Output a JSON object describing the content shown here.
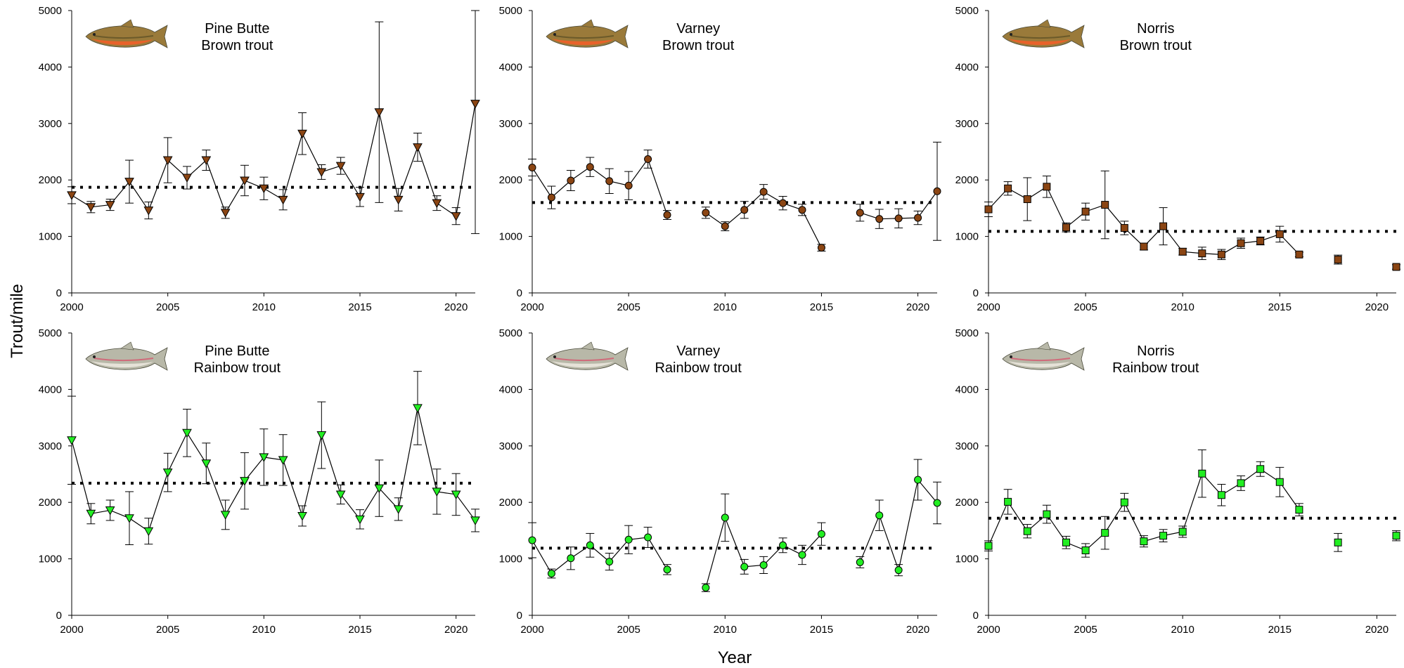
{
  "figure": {
    "ylabel": "Trout/mile",
    "xlabel": "Year"
  },
  "chart_data": [
    {
      "type": "line",
      "panel": "top-left",
      "site": "Pine Butte",
      "species": "Brown trout",
      "title_line1": "Pine Butte",
      "title_line2": "Brown trout",
      "marker": "triangle-down",
      "color": "#8B4513",
      "fish_icon": "brown-trout-icon",
      "xlim": [
        2000,
        2021
      ],
      "ylim": [
        0,
        5000
      ],
      "xticks": [
        2000,
        2005,
        2010,
        2015,
        2020
      ],
      "yticks": [
        0,
        1000,
        2000,
        3000,
        4000,
        5000
      ],
      "mean": 1870,
      "x": [
        2000,
        2001,
        2002,
        2003,
        2004,
        2005,
        2006,
        2007,
        2008,
        2009,
        2010,
        2011,
        2012,
        2013,
        2014,
        2015,
        2016,
        2017,
        2018,
        2019,
        2020,
        2021
      ],
      "y": [
        1730,
        1520,
        1560,
        1970,
        1460,
        2350,
        2040,
        2350,
        1420,
        1990,
        1850,
        1650,
        2820,
        2140,
        2250,
        1700,
        3200,
        1650,
        2580,
        1590,
        1360,
        3350
      ],
      "err": [
        150,
        100,
        100,
        380,
        150,
        400,
        200,
        180,
        100,
        270,
        200,
        180,
        370,
        130,
        150,
        170,
        1600,
        200,
        250,
        130,
        150,
        2300
      ]
    },
    {
      "type": "line",
      "panel": "top-middle",
      "site": "Varney",
      "species": "Brown trout",
      "title_line1": "Varney",
      "title_line2": "Brown trout",
      "marker": "circle",
      "color": "#8B4513",
      "fish_icon": "brown-trout-icon",
      "xlim": [
        2000,
        2021
      ],
      "ylim": [
        0,
        5000
      ],
      "xticks": [
        2000,
        2005,
        2010,
        2015,
        2020
      ],
      "yticks": [
        0,
        1000,
        2000,
        3000,
        4000,
        5000
      ],
      "mean": 1600,
      "segments": [
        {
          "x": [
            2000,
            2001,
            2002,
            2003,
            2004,
            2005,
            2006,
            2007
          ],
          "y": [
            2220,
            1690,
            1990,
            2230,
            1980,
            1900,
            2370,
            1380
          ],
          "err": [
            150,
            200,
            180,
            170,
            220,
            250,
            160,
            80
          ]
        },
        {
          "x": [
            2009,
            2010,
            2011,
            2012,
            2013,
            2014,
            2015
          ],
          "y": [
            1420,
            1180,
            1470,
            1790,
            1590,
            1470,
            800
          ],
          "err": [
            100,
            80,
            150,
            130,
            120,
            100,
            60
          ]
        },
        {
          "x": [
            2017,
            2018,
            2019,
            2020,
            2021
          ],
          "y": [
            1420,
            1310,
            1320,
            1330,
            1800
          ],
          "err": [
            150,
            170,
            170,
            120,
            870
          ]
        }
      ]
    },
    {
      "type": "line",
      "panel": "top-right",
      "site": "Norris",
      "species": "Brown trout",
      "title_line1": "Norris",
      "title_line2": "Brown trout",
      "marker": "square",
      "color": "#8B4513",
      "fish_icon": "brown-trout-icon",
      "xlim": [
        2000,
        2021
      ],
      "ylim": [
        0,
        5000
      ],
      "xticks": [
        2000,
        2005,
        2010,
        2015,
        2020
      ],
      "yticks": [
        0,
        1000,
        2000,
        3000,
        4000,
        5000
      ],
      "mean": 1090,
      "segments": [
        {
          "x": [
            2000,
            2001,
            2002,
            2003,
            2004,
            2005,
            2006,
            2007,
            2008,
            2009,
            2010,
            2011,
            2012,
            2013,
            2014,
            2015,
            2016
          ],
          "y": [
            1480,
            1850,
            1660,
            1880,
            1160,
            1440,
            1560,
            1150,
            820,
            1180,
            730,
            700,
            680,
            880,
            920,
            1040,
            680
          ],
          "err": [
            130,
            120,
            380,
            190,
            80,
            150,
            600,
            120,
            60,
            330,
            60,
            110,
            90,
            90,
            70,
            140,
            40
          ]
        },
        {
          "x": [
            2018
          ],
          "y": [
            590
          ],
          "err": [
            80
          ]
        },
        {
          "x": [
            2021
          ],
          "y": [
            460
          ],
          "err": [
            40
          ]
        }
      ]
    },
    {
      "type": "line",
      "panel": "bottom-left",
      "site": "Pine Butte",
      "species": "Rainbow trout",
      "title_line1": "Pine Butte",
      "title_line2": "Rainbow trout",
      "marker": "triangle-down",
      "color": "#22EE22",
      "fish_icon": "rainbow-trout-icon",
      "xlim": [
        2000,
        2021
      ],
      "ylim": [
        0,
        5000
      ],
      "xticks": [
        2000,
        2005,
        2010,
        2015,
        2020
      ],
      "yticks": [
        0,
        1000,
        2000,
        3000,
        4000,
        5000
      ],
      "mean": 2340,
      "x": [
        2000,
        2001,
        2002,
        2003,
        2004,
        2005,
        2006,
        2007,
        2008,
        2009,
        2010,
        2011,
        2012,
        2013,
        2014,
        2015,
        2016,
        2017,
        2018,
        2019,
        2020,
        2021
      ],
      "y": [
        3100,
        1800,
        1860,
        1720,
        1490,
        2530,
        3230,
        2690,
        1780,
        2380,
        2800,
        2750,
        1760,
        3190,
        2140,
        1700,
        2250,
        1880,
        3670,
        2190,
        2140,
        1680
      ],
      "err": [
        780,
        180,
        180,
        470,
        230,
        340,
        420,
        360,
        260,
        500,
        500,
        450,
        180,
        590,
        170,
        170,
        500,
        200,
        650,
        400,
        370,
        200
      ]
    },
    {
      "type": "line",
      "panel": "bottom-middle",
      "site": "Varney",
      "species": "Rainbow trout",
      "title_line1": "Varney",
      "title_line2": "Rainbow trout",
      "marker": "circle",
      "color": "#22EE22",
      "fish_icon": "rainbow-trout-icon",
      "xlim": [
        2000,
        2021
      ],
      "ylim": [
        0,
        5000
      ],
      "xticks": [
        2000,
        2005,
        2010,
        2015,
        2020
      ],
      "yticks": [
        0,
        1000,
        2000,
        3000,
        4000,
        5000
      ],
      "mean": 1190,
      "segments": [
        {
          "x": [
            2000,
            2001,
            2002,
            2003,
            2004,
            2005,
            2006,
            2007
          ],
          "y": [
            1330,
            740,
            1010,
            1240,
            950,
            1340,
            1380,
            810
          ],
          "err": [
            310,
            80,
            200,
            210,
            150,
            250,
            180,
            90
          ]
        },
        {
          "x": [
            2009,
            2010,
            2011,
            2012,
            2013,
            2014,
            2015
          ],
          "y": [
            490,
            1730,
            860,
            890,
            1240,
            1070,
            1440
          ],
          "err": [
            70,
            420,
            130,
            150,
            130,
            170,
            200
          ]
        },
        {
          "x": [
            2017,
            2018,
            2019,
            2020,
            2021
          ],
          "y": [
            940,
            1770,
            800,
            2400,
            1990
          ],
          "err": [
            100,
            270,
            100,
            360,
            370
          ]
        }
      ]
    },
    {
      "type": "line",
      "panel": "bottom-right",
      "site": "Norris",
      "species": "Rainbow trout",
      "title_line1": "Norris",
      "title_line2": "Rainbow trout",
      "marker": "square",
      "color": "#22EE22",
      "fish_icon": "rainbow-trout-icon",
      "xlim": [
        2000,
        2021
      ],
      "ylim": [
        0,
        5000
      ],
      "xticks": [
        2000,
        2005,
        2010,
        2015,
        2020
      ],
      "yticks": [
        0,
        1000,
        2000,
        3000,
        4000,
        5000
      ],
      "mean": 1720,
      "segments": [
        {
          "x": [
            2000,
            2001,
            2002,
            2003,
            2004,
            2005,
            2006,
            2007,
            2008,
            2009,
            2010,
            2011,
            2012,
            2013,
            2014,
            2015,
            2016
          ],
          "y": [
            1230,
            2010,
            1490,
            1790,
            1290,
            1150,
            1460,
            2000,
            1310,
            1410,
            1480,
            2510,
            2130,
            2340,
            2590,
            2360,
            1870
          ],
          "err": [
            90,
            220,
            120,
            160,
            110,
            120,
            290,
            160,
            100,
            110,
            100,
            420,
            190,
            130,
            130,
            260,
            110
          ]
        },
        {
          "x": [
            2018
          ],
          "y": [
            1290
          ],
          "err": [
            160
          ]
        },
        {
          "x": [
            2021
          ],
          "y": [
            1410
          ],
          "err": [
            90
          ]
        }
      ]
    }
  ]
}
